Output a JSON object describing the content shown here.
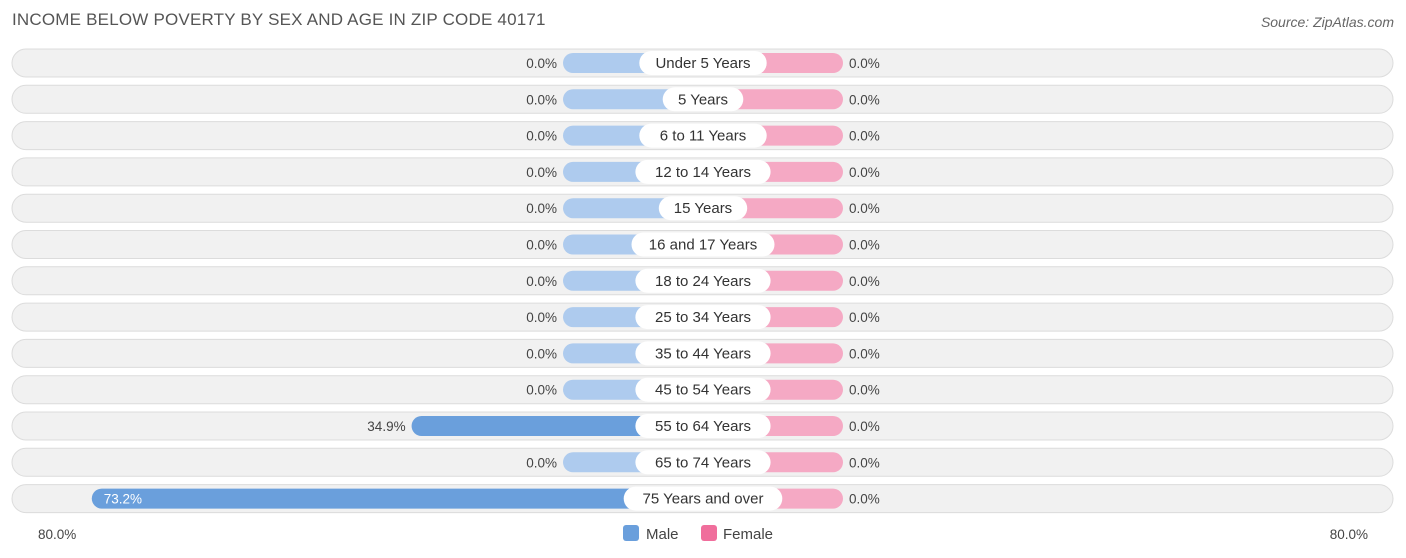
{
  "header": {
    "title": "INCOME BELOW POVERTY BY SEX AND AGE IN ZIP CODE 40171",
    "source": "Source: ZipAtlas.com"
  },
  "colors": {
    "male": "#6a9fdc",
    "male_light": "#aecbee",
    "female": "#f06e9c",
    "female_light": "#f5a9c4"
  },
  "chart_data": {
    "type": "bar",
    "orientation": "horizontal-diverging",
    "categories": [
      "Under 5 Years",
      "5 Years",
      "6 to 11 Years",
      "12 to 14 Years",
      "15 Years",
      "16 and 17 Years",
      "18 to 24 Years",
      "25 to 34 Years",
      "35 to 44 Years",
      "45 to 54 Years",
      "55 to 64 Years",
      "65 to 74 Years",
      "75 Years and over"
    ],
    "series": [
      {
        "name": "Male",
        "values": [
          0.0,
          0.0,
          0.0,
          0.0,
          0.0,
          0.0,
          0.0,
          0.0,
          0.0,
          0.0,
          34.9,
          0.0,
          73.2
        ]
      },
      {
        "name": "Female",
        "values": [
          0.0,
          0.0,
          0.0,
          0.0,
          0.0,
          0.0,
          0.0,
          0.0,
          0.0,
          0.0,
          0.0,
          0.0,
          0.0
        ]
      }
    ],
    "value_labels": {
      "male": [
        "0.0%",
        "0.0%",
        "0.0%",
        "0.0%",
        "0.0%",
        "0.0%",
        "0.0%",
        "0.0%",
        "0.0%",
        "0.0%",
        "34.9%",
        "0.0%",
        "73.2%"
      ],
      "female": [
        "0.0%",
        "0.0%",
        "0.0%",
        "0.0%",
        "0.0%",
        "0.0%",
        "0.0%",
        "0.0%",
        "0.0%",
        "0.0%",
        "0.0%",
        "0.0%",
        "0.0%"
      ]
    },
    "axis": {
      "min_label": "80.0%",
      "max_label": "80.0%",
      "max": 80
    },
    "legend": {
      "position": "bottom-center",
      "items": [
        "Male",
        "Female"
      ]
    }
  }
}
